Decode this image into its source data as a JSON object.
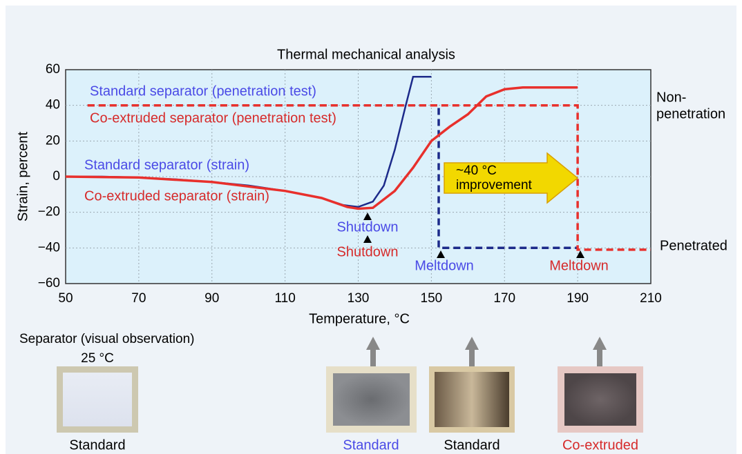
{
  "chart_data": {
    "type": "line",
    "title": "Thermal mechanical analysis",
    "xlabel": "Temperature, °C",
    "ylabel": "Strain, percent",
    "xlim": [
      50,
      210
    ],
    "xticks": [
      50,
      70,
      90,
      110,
      130,
      150,
      170,
      190,
      210
    ],
    "ylim": [
      -60,
      60
    ],
    "yticks": [
      {
        "value": -60,
        "label": "−60"
      },
      {
        "value": -40,
        "label": "−40"
      },
      {
        "value": -20,
        "label": "−20"
      },
      0,
      20,
      40,
      60
    ],
    "grid": true,
    "series": [
      {
        "name": "Standard separator (penetration test)",
        "color": "#1c2a8a",
        "dashed": true,
        "x": [
          56,
          152,
          152,
          190
        ],
        "values": [
          40,
          40,
          -40,
          -40
        ]
      },
      {
        "name": "Co-extruded separator (penetration test)",
        "color": "#e8302c",
        "dashed": true,
        "x": [
          56,
          190,
          190,
          210
        ],
        "values": [
          40,
          40,
          -41,
          -41
        ]
      },
      {
        "name": "Standard separator (strain)",
        "color": "#1c2a8a",
        "dashed": false,
        "x": [
          50,
          60,
          70,
          80,
          90,
          100,
          110,
          120,
          126,
          130,
          134,
          137,
          140,
          143,
          145,
          150
        ],
        "values": [
          0,
          0,
          -0.5,
          -1.5,
          -3,
          -5,
          -8,
          -12,
          -16,
          -17,
          -14,
          -5,
          15,
          40,
          56,
          56
        ]
      },
      {
        "name": "Co-extruded separator (strain)",
        "color": "#e8302c",
        "dashed": false,
        "x": [
          50,
          70,
          90,
          110,
          120,
          127,
          130,
          134,
          140,
          145,
          150,
          155,
          160,
          165,
          170,
          175,
          190
        ],
        "values": [
          0,
          -0.5,
          -3,
          -8,
          -12,
          -17,
          -18,
          -17.5,
          -8,
          5,
          20,
          28,
          35,
          45,
          49,
          50,
          50
        ]
      }
    ],
    "annotations": {
      "non_penetration": [
        "Non-",
        "penetration"
      ],
      "penetrated": "Penetrated",
      "shutdown_standard": "Shutdown",
      "shutdown_coextruded": "Shutdown",
      "meltdown_standard": "Meltdown",
      "meltdown_coextruded": "Meltdown",
      "improvement": [
        "~40 °C",
        "improvement"
      ]
    }
  },
  "photos": {
    "title": "Separator (visual observation)",
    "temperature": "25 °C",
    "labels": [
      "Standard",
      "Standard",
      "Standard",
      "Co-extruded"
    ]
  }
}
